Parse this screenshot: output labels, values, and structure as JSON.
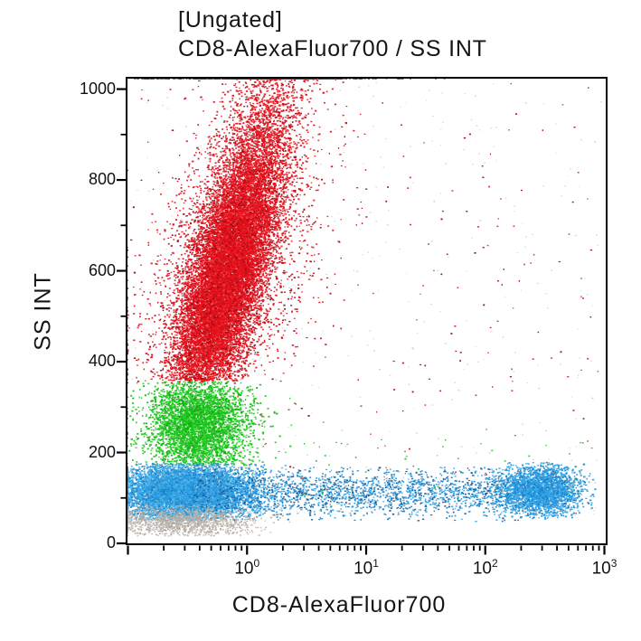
{
  "header": {
    "gate_label": "[Ungated]",
    "plot_params_label": "CD8-AlexaFluor700 / SS INT"
  },
  "chart_data": {
    "type": "scatter",
    "subtype": "flow-cytometry-dot-plot",
    "title": "[Ungated]",
    "subtitle": "CD8-AlexaFluor700 / SS INT",
    "xlabel": "CD8-AlexaFluor700",
    "ylabel": "SS INT",
    "x_scale": "log",
    "x_range_log10": [
      -1,
      3
    ],
    "y_scale": "linear",
    "y_range": [
      0,
      1023
    ],
    "grid": false,
    "legend": "none",
    "x_ticks": [
      {
        "base": "10",
        "exp": "0",
        "log10": 0
      },
      {
        "base": "10",
        "exp": "1",
        "log10": 1
      },
      {
        "base": "10",
        "exp": "2",
        "log10": 2
      },
      {
        "base": "10",
        "exp": "3",
        "log10": 3
      }
    ],
    "x_unlabeled_decades": [
      -1
    ],
    "x_minor_multiples": [
      2,
      3,
      4,
      5,
      6,
      7,
      8,
      9
    ],
    "y_ticks": [
      "1000",
      "800",
      "600",
      "400",
      "200",
      "0"
    ],
    "y_tick_values": [
      1000,
      800,
      600,
      400,
      200,
      0
    ],
    "y_minor_values": [
      100,
      300,
      500,
      700,
      900
    ],
    "axis_color": "#000000",
    "background": "#ffffff",
    "seed": 1234,
    "populations": [
      {
        "name": "granulocytes-red-core",
        "n": 13000,
        "size": 1.7,
        "colors": [
          "#e8111d",
          "#e8111d",
          "#e8111d",
          "#e8111d",
          "#d90f19",
          "#c60d16",
          "#f03a42"
        ],
        "x": {
          "dist": "normal",
          "sd": 0.155,
          "drift": {
            "base": -0.35,
            "slope": 0.00096,
            "yref": 400
          },
          "lo": -1,
          "hi": 3,
          "loMode": "pile",
          "hiMode": "resample"
        },
        "y": {
          "dist": "normal",
          "mean": 580,
          "sd": 140,
          "lo": 358,
          "hi": 1023,
          "loMode": "resample",
          "hiMode": "pile"
        }
      },
      {
        "name": "granulocytes-red-upper",
        "n": 3000,
        "size": 1.7,
        "colors": [
          "#e8111d",
          "#e8111d",
          "#d90f19",
          "#c60d16",
          "#f03a42"
        ],
        "x": {
          "dist": "normal",
          "sd": 0.17,
          "drift": {
            "base": -0.35,
            "slope": 0.00096,
            "yref": 400
          },
          "lo": -1,
          "hi": 3,
          "loMode": "pile",
          "hiMode": "resample"
        },
        "y": {
          "dist": "normal",
          "mean": 800,
          "sd": 170,
          "lo": 358,
          "hi": 1023,
          "loMode": "resample",
          "hiMode": "pile"
        }
      },
      {
        "name": "granulocytes-red-halo",
        "n": 2600,
        "size": 1.6,
        "colors": [
          "#e8111d",
          "#d90f19",
          "#b00c14",
          "#9b0b12",
          "#e8111d"
        ],
        "x": {
          "dist": "normal",
          "sd": 0.34,
          "drift": {
            "base": -0.35,
            "slope": 0.00096,
            "yref": 400
          },
          "lo": -1,
          "hi": 3,
          "loMode": "pile",
          "hiMode": "resample"
        },
        "y": {
          "dist": "normal",
          "mean": 600,
          "sd": 190,
          "lo": 352,
          "hi": 1023,
          "loMode": "resample",
          "hiMode": "pile"
        }
      },
      {
        "name": "red-top-edge-pileup",
        "n": 420,
        "size": 1.7,
        "colors": [
          "#e8111d",
          "#d90f19",
          "#c60d16"
        ],
        "x": {
          "dist": "normal",
          "mean": 0.05,
          "sd": 0.5,
          "lo": -0.95,
          "hi": 1.75,
          "loMode": "resample",
          "hiMode": "resample"
        },
        "y": {
          "dist": "const",
          "value": 1023
        }
      },
      {
        "name": "red-scattered-outliers",
        "n": 230,
        "size": 1.5,
        "colors": [
          "#c10d16",
          "#9b0b12",
          "#7d0a10",
          "#d42029"
        ],
        "x": {
          "dist": "uniform",
          "lo": -0.95,
          "hi": 2.95
        },
        "y": {
          "dist": "uniform",
          "lo": 140,
          "hi": 1015
        }
      },
      {
        "name": "monocytes-green",
        "n": 3800,
        "size": 1.7,
        "colors": [
          "#1ec81e",
          "#1ec81e",
          "#12bb12",
          "#35d435",
          "#0fae0f"
        ],
        "x": {
          "dist": "normal",
          "mean": -0.4,
          "sd": 0.21,
          "lo": -1,
          "hi": 0.62,
          "loMode": "pile",
          "hiMode": "resample"
        },
        "y": {
          "dist": "normal",
          "mean": 262,
          "sd": 54,
          "lo": 172,
          "hi": 356,
          "loMode": "resample",
          "hiMode": "resample"
        }
      },
      {
        "name": "green-scattered-outliers",
        "n": 70,
        "size": 1.5,
        "colors": [
          "#2ecc2e",
          "#17c117"
        ],
        "x": {
          "dist": "uniform",
          "lo": -0.6,
          "hi": 2.9
        },
        "y": {
          "dist": "uniform",
          "lo": 95,
          "hi": 235
        }
      },
      {
        "name": "lymphocytes-blue-left",
        "n": 7500,
        "size": 1.7,
        "colors": [
          "#2f9fe2",
          "#2f9fe2",
          "#2492d8",
          "#45ace8",
          "#1580c8",
          "#5cb8ec"
        ],
        "x": {
          "dist": "normal",
          "mean": -0.52,
          "sd": 0.27,
          "lo": -1,
          "hi": 0.7,
          "loMode": "pile",
          "hiMode": "resample"
        },
        "y": {
          "dist": "normal",
          "mean": 113,
          "sd": 30,
          "lo": 50,
          "hi": 176,
          "loMode": "resample",
          "hiMode": "resample"
        }
      },
      {
        "name": "lymphocytes-blue-band",
        "n": 2300,
        "size": 1.6,
        "colors": [
          "#2f9fe2",
          "#2492d8",
          "#1b6fb5",
          "#45ace8",
          "#14558e"
        ],
        "x": {
          "dist": "uniform",
          "lo": -0.45,
          "hi": 2.3
        },
        "y": {
          "dist": "normal",
          "mean": 112,
          "sd": 27,
          "lo": 48,
          "hi": 168,
          "loMode": "resample",
          "hiMode": "resample"
        }
      },
      {
        "name": "cd8-positive-blue-cluster",
        "n": 2400,
        "size": 1.7,
        "colors": [
          "#2f9fe2",
          "#2f9fe2",
          "#2492d8",
          "#45ace8",
          "#1580c8"
        ],
        "x": {
          "dist": "normal",
          "mean": 2.47,
          "sd": 0.16,
          "lo": 1.9,
          "hi": 2.97,
          "loMode": "resample",
          "hiMode": "resample"
        },
        "y": {
          "dist": "normal",
          "mean": 116,
          "sd": 27,
          "lo": 52,
          "hi": 178,
          "loMode": "resample",
          "hiMode": "resample"
        }
      },
      {
        "name": "debris-gray",
        "n": 1400,
        "size": 1.5,
        "colors": [
          "#b6aea4",
          "#c2bcb4",
          "#a9a29b",
          "#beb6ac"
        ],
        "x": {
          "dist": "normal",
          "mean": -0.55,
          "sd": 0.32,
          "lo": -1,
          "hi": 0.5,
          "loMode": "pile",
          "hiMode": "resample"
        },
        "y": {
          "dist": "normal",
          "mean": 47,
          "sd": 16,
          "lo": 16,
          "hi": 86,
          "loMode": "resample",
          "hiMode": "resample"
        }
      },
      {
        "name": "sparse-dust-gray",
        "n": 330,
        "size": 1.3,
        "colors": [
          "#d6d3d9",
          "#cbc8ce",
          "#dedbe0"
        ],
        "x": {
          "dist": "uniform",
          "lo": -0.98,
          "hi": 2.98
        },
        "y": {
          "dist": "uniform",
          "lo": 55,
          "hi": 1015
        }
      }
    ]
  }
}
